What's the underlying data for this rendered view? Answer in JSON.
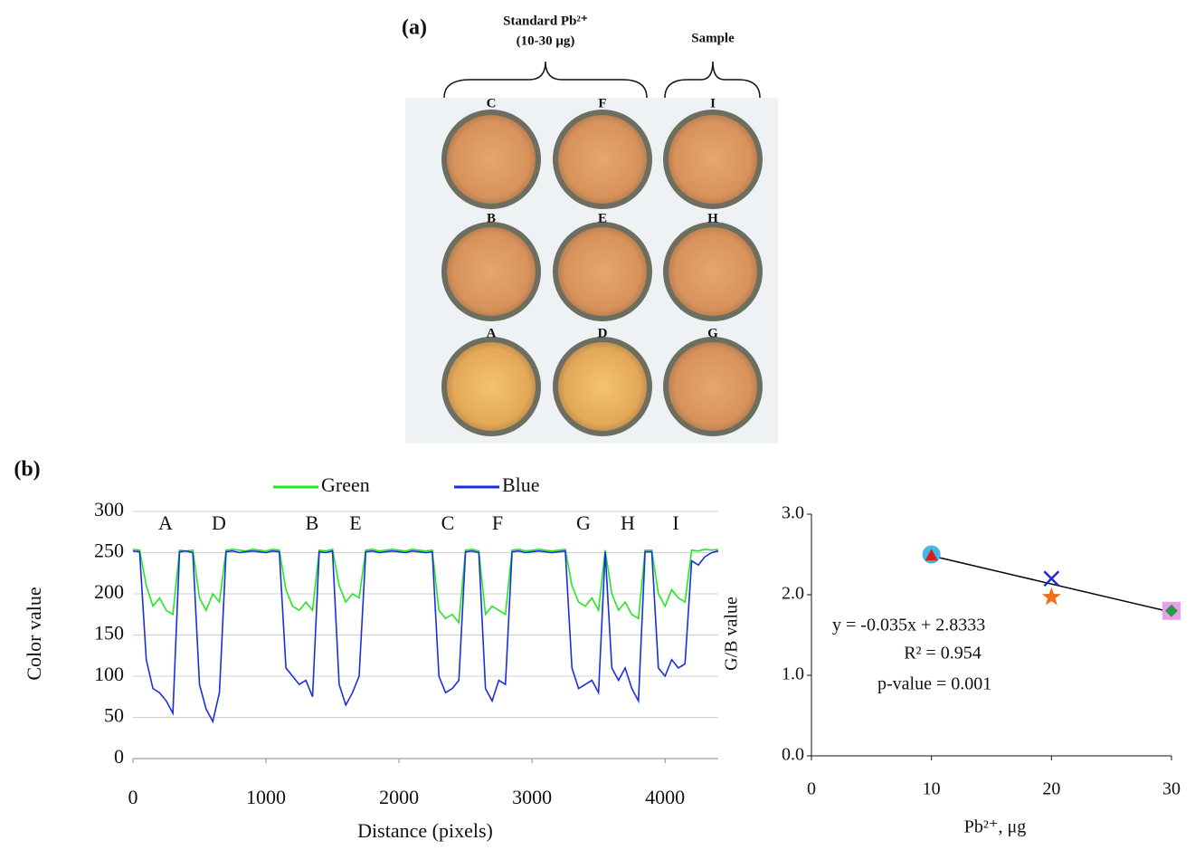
{
  "panel_a": {
    "label": "(a)",
    "standard_title": "Standard Pb²⁺",
    "standard_range": "(10-30 μg)",
    "sample_title": "Sample",
    "wells": [
      [
        "C",
        "F",
        "I"
      ],
      [
        "B",
        "E",
        "H"
      ],
      [
        "A",
        "D",
        "G"
      ]
    ]
  },
  "panel_b": {
    "label": "(b)"
  },
  "chart_data": [
    {
      "type": "line",
      "ylabel": "Color value",
      "xlabel": "Distance (pixels)",
      "xlim": [
        0,
        4400
      ],
      "ylim": [
        0,
        300
      ],
      "xticks": [
        0,
        1000,
        2000,
        3000,
        4000
      ],
      "yticks": [
        0,
        50,
        100,
        150,
        200,
        250,
        300
      ],
      "grid": true,
      "peak_labels": [
        "A",
        "D",
        "B",
        "E",
        "C",
        "F",
        "G",
        "H",
        "I"
      ],
      "x": [
        0,
        50,
        100,
        150,
        200,
        250,
        300,
        350,
        400,
        450,
        500,
        550,
        600,
        650,
        700,
        750,
        800,
        850,
        900,
        950,
        1000,
        1050,
        1100,
        1150,
        1200,
        1250,
        1300,
        1350,
        1400,
        1450,
        1500,
        1550,
        1600,
        1650,
        1700,
        1750,
        1800,
        1850,
        1900,
        1950,
        2000,
        2050,
        2100,
        2150,
        2200,
        2250,
        2300,
        2350,
        2400,
        2450,
        2500,
        2550,
        2600,
        2650,
        2700,
        2750,
        2800,
        2850,
        2900,
        2950,
        3000,
        3050,
        3100,
        3150,
        3200,
        3250,
        3300,
        3350,
        3400,
        3450,
        3500,
        3550,
        3600,
        3650,
        3700,
        3750,
        3800,
        3850,
        3900,
        3950,
        4000,
        4050,
        4100,
        4150,
        4200,
        4250,
        4300,
        4350,
        4400
      ],
      "series": [
        {
          "name": "Green",
          "color": "#22e822",
          "values": [
            254,
            253,
            210,
            185,
            195,
            180,
            175,
            253,
            252,
            253,
            195,
            180,
            200,
            190,
            253,
            254,
            253,
            252,
            254,
            253,
            252,
            254,
            253,
            205,
            185,
            180,
            190,
            180,
            253,
            252,
            254,
            210,
            190,
            200,
            195,
            253,
            254,
            252,
            253,
            254,
            253,
            252,
            254,
            253,
            252,
            253,
            180,
            170,
            175,
            165,
            253,
            254,
            252,
            175,
            185,
            180,
            175,
            253,
            254,
            252,
            253,
            254,
            253,
            252,
            253,
            254,
            210,
            190,
            185,
            195,
            180,
            253,
            200,
            180,
            190,
            175,
            170,
            253,
            253,
            200,
            185,
            205,
            195,
            190,
            253,
            252,
            254,
            253,
            254
          ]
        },
        {
          "name": "Blue",
          "color": "#1a2ee0",
          "values": [
            252,
            251,
            120,
            85,
            80,
            70,
            55,
            251,
            252,
            250,
            90,
            60,
            45,
            80,
            251,
            252,
            250,
            251,
            252,
            251,
            250,
            252,
            251,
            110,
            100,
            90,
            95,
            75,
            251,
            250,
            252,
            90,
            65,
            80,
            100,
            251,
            252,
            250,
            251,
            252,
            251,
            250,
            252,
            251,
            250,
            251,
            100,
            80,
            85,
            95,
            251,
            252,
            250,
            85,
            70,
            95,
            90,
            251,
            252,
            250,
            251,
            252,
            251,
            250,
            251,
            252,
            110,
            85,
            90,
            95,
            80,
            251,
            110,
            95,
            110,
            85,
            70,
            251,
            251,
            110,
            100,
            120,
            110,
            115,
            240,
            235,
            245,
            250,
            252
          ]
        }
      ]
    },
    {
      "type": "scatter",
      "ylabel": "G/B value",
      "xlabel": "Pb²⁺, μg",
      "xlim": [
        0,
        30
      ],
      "ylim": [
        0,
        3
      ],
      "xticks": [
        0,
        10,
        20,
        30
      ],
      "yticks": [
        {
          "value": 0,
          "label": "0.0"
        },
        {
          "value": 1,
          "label": "1.0"
        },
        {
          "value": 2,
          "label": "2.0"
        },
        {
          "value": 3,
          "label": "3.0"
        }
      ],
      "points": [
        {
          "x": 10,
          "y": 2.5,
          "marker": "circle",
          "color": "#45b6e8"
        },
        {
          "x": 10,
          "y": 2.48,
          "marker": "triangle",
          "color": "#d81e1e"
        },
        {
          "x": 20,
          "y": 2.2,
          "marker": "cross",
          "color": "#1d2bd0"
        },
        {
          "x": 20,
          "y": 1.97,
          "marker": "star",
          "color": "#f07020"
        },
        {
          "x": 30,
          "y": 1.8,
          "marker": "square",
          "color": "#e8a0e8"
        },
        {
          "x": 30,
          "y": 1.8,
          "marker": "diamond",
          "color": "#2a9a4a"
        }
      ],
      "trendline": {
        "x": [
          10,
          30
        ],
        "values": [
          2.4833,
          1.7833
        ],
        "color": "#000000"
      },
      "annotations": [
        "y = -0.035x + 2.8333",
        "R² = 0.954",
        "p-value = 0.001"
      ]
    }
  ]
}
